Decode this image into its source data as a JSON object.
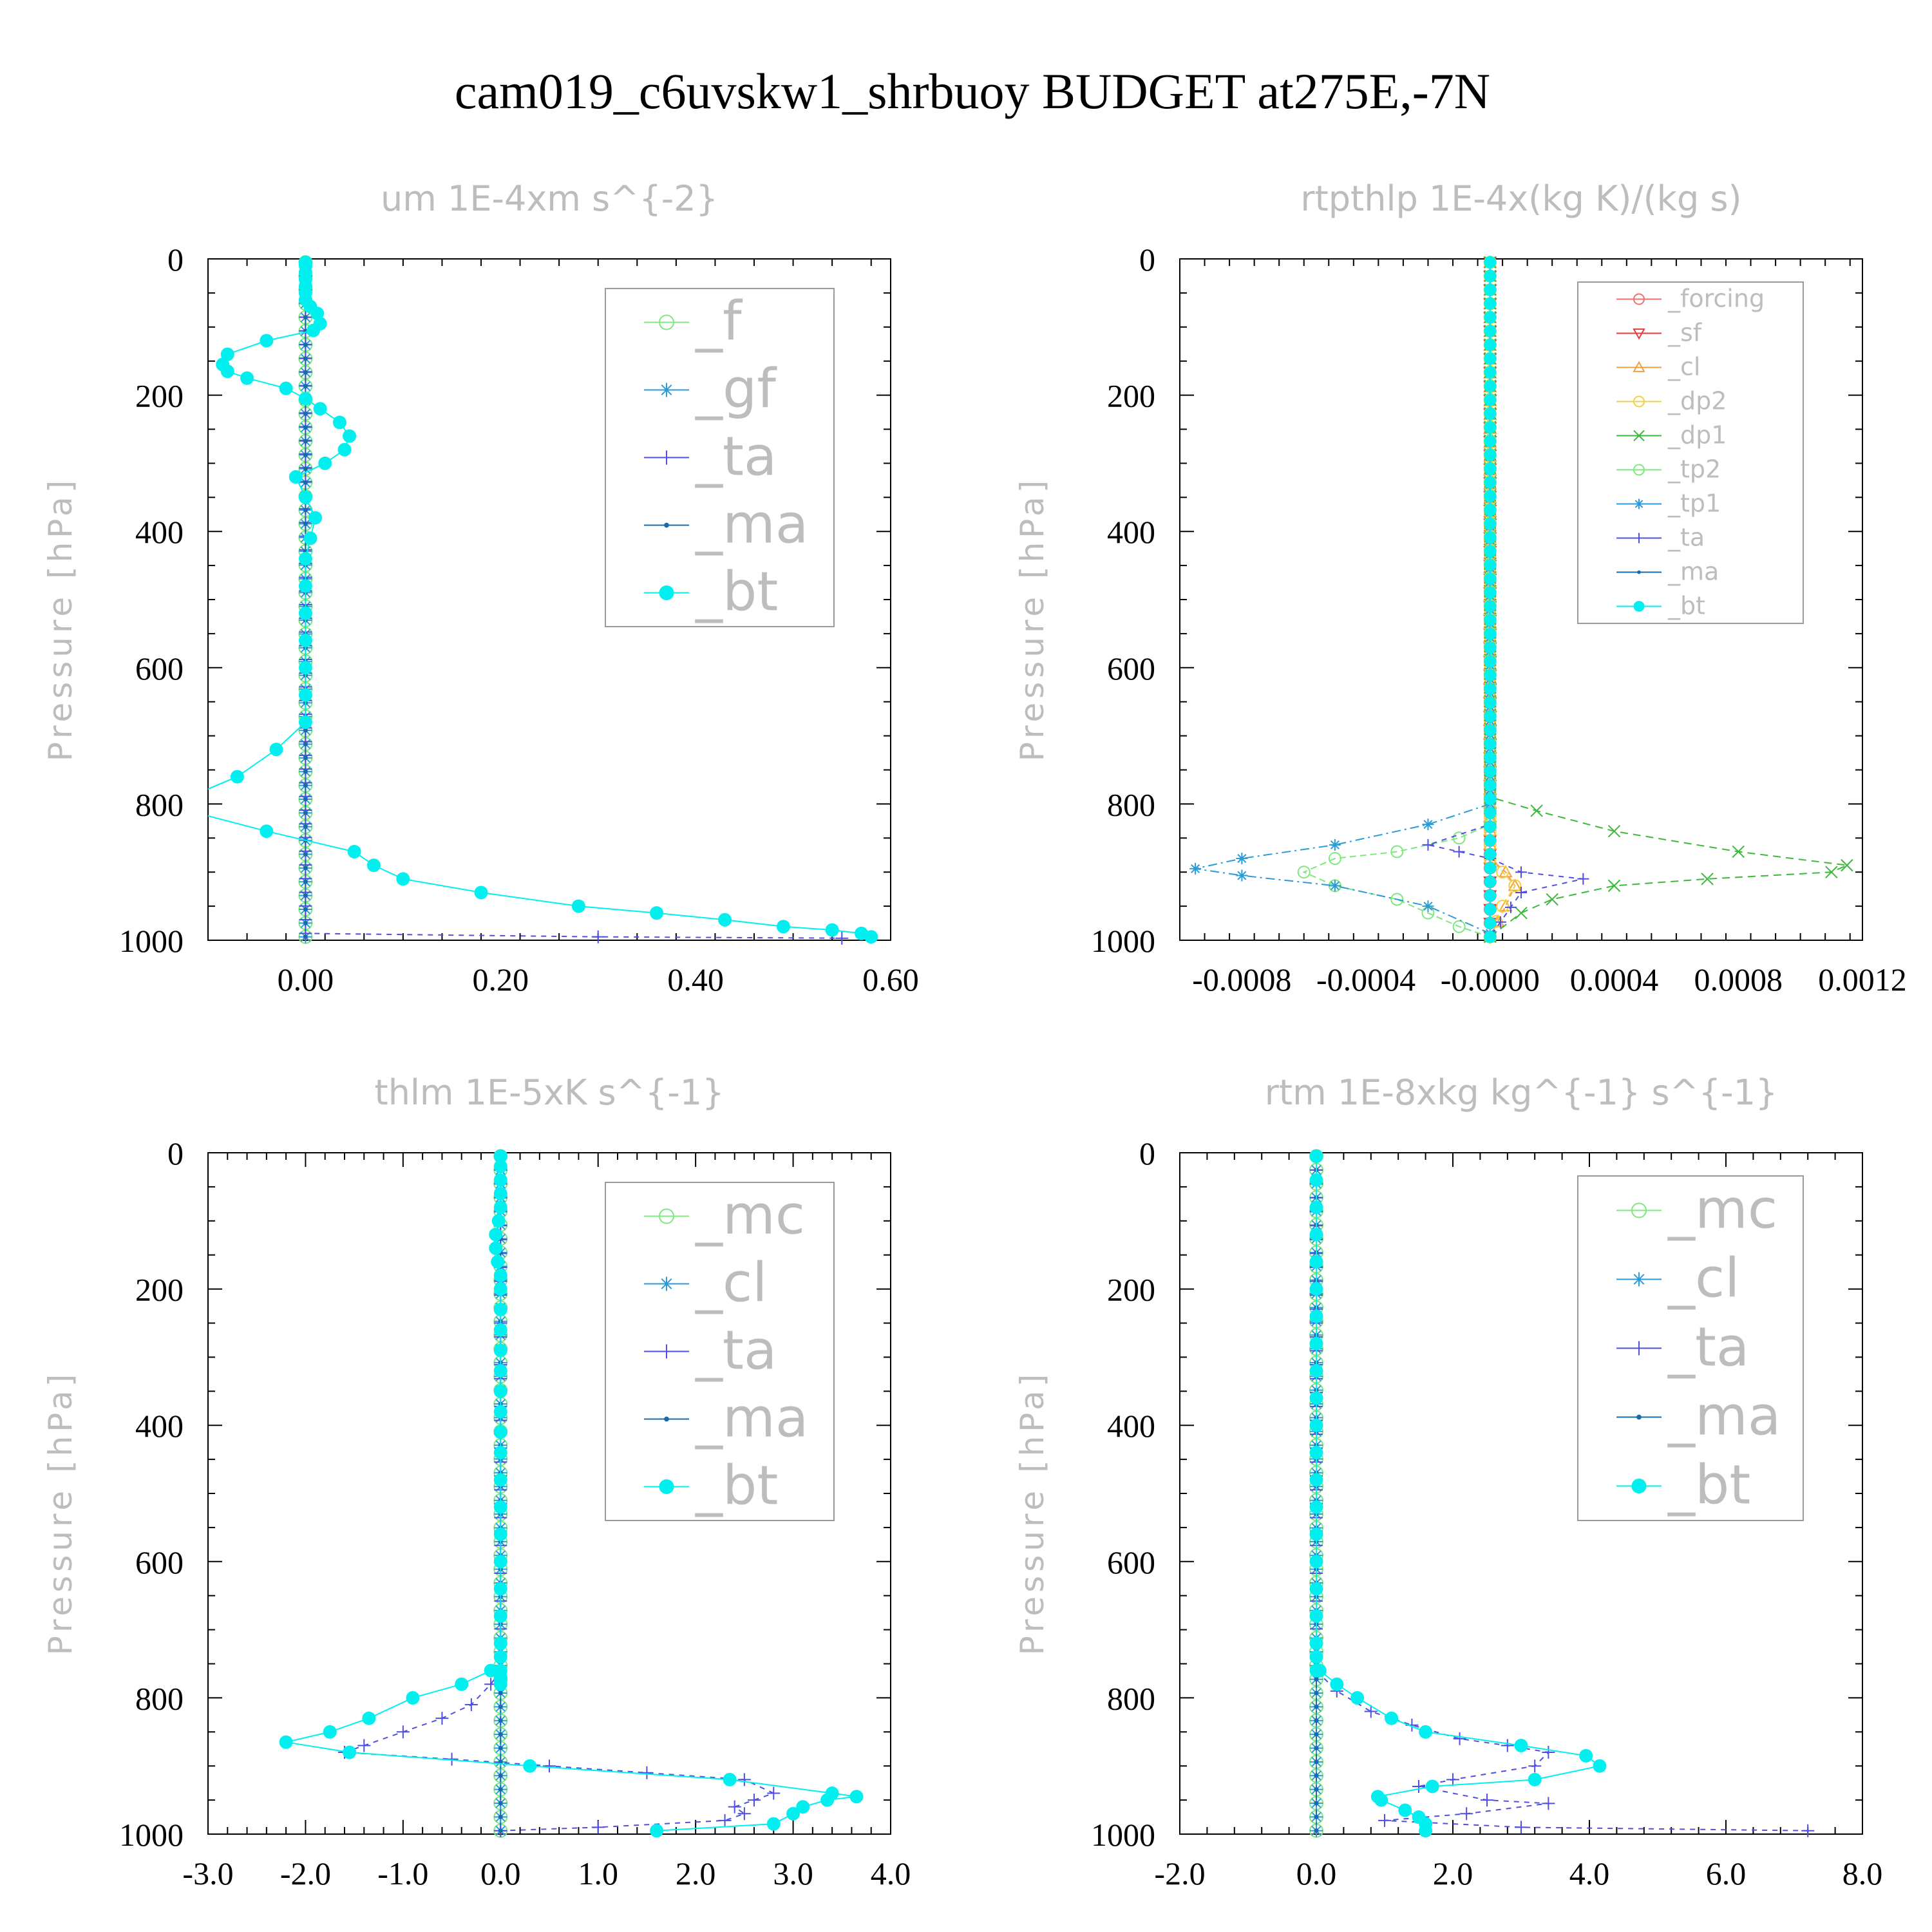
{
  "title": "cam019_c6uvskw1_shrbuoy  BUDGET at275E,-7N",
  "colors": {
    "f": "#7ee87e",
    "gf": "#2a9bd8",
    "ta": "#4f4fe0",
    "ma": "#1a6aa8",
    "bt": "#00f0f0",
    "forcing": "#f07070",
    "sf": "#e83a3a",
    "cl": "#f0a040",
    "dp2": "#f0d040",
    "dp1": "#3cb83c",
    "tp2": "#7ee87e",
    "tp1": "#2a9bd8",
    "mc": "#7ee87e",
    "cl_b": "#2a9bd8"
  },
  "chart_data": [
    {
      "type": "line",
      "title": "um  1E-4xm s^{-2}",
      "ylabel": "Pressure [hPa]",
      "xlim": [
        -0.1,
        0.6
      ],
      "ylim": [
        1000,
        0
      ],
      "xticks": [
        "0.00",
        "0.20",
        "0.40",
        "0.60"
      ],
      "yticks": [
        "0",
        "200",
        "400",
        "600",
        "800",
        "1000"
      ],
      "legend_position": "top-right",
      "series": [
        {
          "name": "_f",
          "key": "f",
          "marker": "circle-open",
          "x": [
            0.0,
            0.0
          ],
          "y": [
            5,
            995
          ]
        },
        {
          "name": "_gf",
          "key": "gf",
          "marker": "asterisk",
          "x": [
            0.0,
            0.0
          ],
          "y": [
            5,
            995
          ]
        },
        {
          "name": "_ta",
          "key": "ta",
          "marker": "plus",
          "x": [
            0.0,
            0.0,
            0.3,
            0.55
          ],
          "y": [
            5,
            990,
            995,
            997
          ]
        },
        {
          "name": "_ma",
          "key": "ma",
          "marker": "dot",
          "x": [
            0.0,
            0.0
          ],
          "y": [
            5,
            995
          ]
        },
        {
          "name": "_bt",
          "key": "bt",
          "marker": "circle-filled",
          "x": [
            0.0,
            0.0,
            0.0,
            0.0,
            0.0,
            0.0,
            0.0,
            0.005,
            0.012,
            0.015,
            0.008,
            -0.04,
            -0.08,
            -0.085,
            -0.08,
            -0.06,
            -0.02,
            0.0,
            0.015,
            0.035,
            0.045,
            0.04,
            0.02,
            -0.01,
            0.0,
            0.01,
            0.005,
            0.0,
            0.0,
            0.0,
            0.0,
            0.0,
            0.0,
            0.0,
            -0.03,
            -0.07,
            -0.12,
            -0.12,
            -0.04,
            0.05,
            0.07,
            0.1,
            0.18,
            0.28,
            0.36,
            0.43,
            0.49,
            0.54,
            0.57,
            0.58
          ],
          "y": [
            5,
            10,
            20,
            30,
            40,
            50,
            60,
            70,
            80,
            95,
            105,
            120,
            140,
            155,
            165,
            175,
            190,
            205,
            220,
            240,
            260,
            280,
            300,
            320,
            350,
            380,
            410,
            440,
            480,
            520,
            560,
            600,
            640,
            680,
            720,
            760,
            790,
            810,
            840,
            870,
            890,
            910,
            930,
            950,
            960,
            970,
            980,
            985,
            990,
            995
          ]
        }
      ]
    },
    {
      "type": "line",
      "title": "rtpthlp  1E-4x(kg K)/(kg s)",
      "ylabel": "Pressure [hPa]",
      "xlim": [
        -0.001,
        0.0012
      ],
      "ylim": [
        1000,
        0
      ],
      "xticks": [
        "-0.0008",
        "-0.0004",
        "-0.0000",
        "0.0004",
        "0.0008",
        "0.0012"
      ],
      "yticks": [
        "0",
        "200",
        "400",
        "600",
        "800",
        "1000"
      ],
      "legend_position": "top-right",
      "series": [
        {
          "name": "_forcing",
          "key": "forcing",
          "marker": "circle-open",
          "x": [
            0,
            0
          ],
          "y": [
            5,
            995
          ]
        },
        {
          "name": "_sf",
          "key": "sf",
          "marker": "triangle-down",
          "x": [
            0,
            0
          ],
          "y": [
            5,
            995
          ]
        },
        {
          "name": "_cl",
          "key": "cl",
          "marker": "triangle-up",
          "x": [
            0,
            0,
            5e-05,
            8e-05,
            5e-05,
            0.0
          ],
          "y": [
            5,
            880,
            900,
            920,
            950,
            995
          ]
        },
        {
          "name": "_dp2",
          "key": "dp2",
          "marker": "circle-open",
          "x": [
            0,
            0,
            4e-05,
            8e-05,
            4e-05,
            0.0
          ],
          "y": [
            5,
            880,
            900,
            920,
            950,
            995
          ]
        },
        {
          "name": "_dp1",
          "key": "dp1",
          "marker": "x",
          "x": [
            0,
            0,
            0.00015,
            0.0004,
            0.0008,
            0.00115,
            0.0011,
            0.0007,
            0.0004,
            0.0002,
            0.0001,
            0.0
          ],
          "y": [
            5,
            790,
            810,
            840,
            870,
            890,
            900,
            910,
            920,
            940,
            960,
            995
          ]
        },
        {
          "name": "_tp2",
          "key": "tp2",
          "marker": "circle-open",
          "x": [
            0,
            0,
            -0.0001,
            -0.0003,
            -0.0005,
            -0.0006,
            -0.0005,
            -0.0003,
            -0.0002,
            -0.0001,
            0.0
          ],
          "y": [
            5,
            830,
            850,
            870,
            880,
            900,
            920,
            940,
            960,
            980,
            995
          ]
        },
        {
          "name": "_tp1",
          "key": "tp1",
          "marker": "asterisk",
          "x": [
            0,
            0,
            -0.0002,
            -0.0005,
            -0.0008,
            -0.00095,
            -0.0008,
            -0.0005,
            -0.0002,
            0.0
          ],
          "y": [
            5,
            800,
            830,
            860,
            880,
            895,
            905,
            920,
            950,
            990
          ]
        },
        {
          "name": "_ta",
          "key": "ta",
          "marker": "plus",
          "x": [
            0,
            0,
            -0.0002,
            -0.0001,
            0.0,
            0.0001,
            0.0003,
            0.0001,
            0.0
          ],
          "y": [
            5,
            830,
            860,
            870,
            880,
            900,
            910,
            930,
            995
          ]
        },
        {
          "name": "_ma",
          "key": "ma",
          "marker": "dot",
          "x": [
            0,
            0
          ],
          "y": [
            5,
            995
          ]
        },
        {
          "name": "_bt",
          "key": "bt",
          "marker": "circle-filled",
          "x": [
            0,
            0
          ],
          "y": [
            5,
            995
          ]
        }
      ]
    },
    {
      "type": "line",
      "title": "thlm  1E-5xK s^{-1}",
      "ylabel": "Pressure [hPa]",
      "xlim": [
        -3.0,
        4.0
      ],
      "ylim": [
        1000,
        0
      ],
      "xticks": [
        "-3.0",
        "-2.0",
        "-1.0",
        "0.0",
        "1.0",
        "2.0",
        "3.0",
        "4.0"
      ],
      "yticks": [
        "0",
        "200",
        "400",
        "600",
        "800",
        "1000"
      ],
      "legend_position": "top-right",
      "series": [
        {
          "name": "_mc",
          "key": "mc",
          "marker": "circle-open",
          "x": [
            0.0,
            0.0
          ],
          "y": [
            5,
            995
          ]
        },
        {
          "name": "_cl",
          "key": "cl_b",
          "marker": "asterisk",
          "x": [
            0.0,
            0.0
          ],
          "y": [
            5,
            995
          ]
        },
        {
          "name": "_ta",
          "key": "ta",
          "marker": "plus",
          "x": [
            0.0,
            0.0,
            -0.1,
            -0.3,
            -0.6,
            -1.0,
            -1.4,
            -1.6,
            -0.5,
            0.5,
            1.5,
            2.5,
            2.8,
            2.6,
            2.4,
            2.5,
            2.3,
            1.0,
            0.0
          ],
          "y": [
            5,
            760,
            780,
            810,
            830,
            850,
            870,
            880,
            890,
            900,
            910,
            920,
            940,
            950,
            960,
            970,
            980,
            990,
            995
          ]
        },
        {
          "name": "_ma",
          "key": "ma",
          "marker": "dot",
          "x": [
            0.0,
            0.0
          ],
          "y": [
            5,
            995
          ]
        },
        {
          "name": "_bt",
          "key": "bt",
          "marker": "circle-filled",
          "x": [
            0.0,
            0.0,
            0.0,
            0.0,
            0.0,
            -0.02,
            -0.05,
            -0.05,
            -0.03,
            0.0,
            0.0,
            0.0,
            0.0,
            0.0,
            0.0,
            0.0,
            0.0,
            0.0,
            0.0,
            0.0,
            0.0,
            0.0,
            0.0,
            0.0,
            0.0,
            0.0,
            0.0,
            0.0,
            0.0,
            0.0,
            0.0,
            -0.1,
            -0.4,
            -0.9,
            -1.35,
            -1.75,
            -2.2,
            -1.55,
            0.3,
            2.35,
            3.4,
            3.65,
            3.35,
            3.1,
            3.0,
            2.8,
            1.6
          ],
          "y": [
            5,
            20,
            40,
            60,
            80,
            100,
            120,
            140,
            160,
            180,
            200,
            230,
            260,
            290,
            320,
            350,
            380,
            410,
            440,
            480,
            520,
            560,
            600,
            640,
            680,
            720,
            740,
            760,
            770,
            775,
            780,
            760,
            780,
            800,
            830,
            850,
            865,
            880,
            900,
            920,
            940,
            945,
            950,
            960,
            970,
            985,
            995
          ]
        }
      ]
    },
    {
      "type": "line",
      "title": "rtm  1E-8xkg kg^{-1} s^{-1}",
      "ylabel": "Pressure [hPa]",
      "xlim": [
        -2.0,
        8.0
      ],
      "ylim": [
        1000,
        0
      ],
      "xticks": [
        "-2.0",
        "0.0",
        "2.0",
        "4.0",
        "6.0",
        "8.0"
      ],
      "yticks": [
        "0",
        "200",
        "400",
        "600",
        "800",
        "1000"
      ],
      "legend_position": "top-right",
      "series": [
        {
          "name": "_mc",
          "key": "mc",
          "marker": "circle-open",
          "x": [
            0.0,
            0.0
          ],
          "y": [
            5,
            995
          ]
        },
        {
          "name": "_cl",
          "key": "cl_b",
          "marker": "asterisk",
          "x": [
            0.0,
            0.0
          ],
          "y": [
            5,
            995
          ]
        },
        {
          "name": "_ta",
          "key": "ta",
          "marker": "plus",
          "x": [
            0.0,
            0.0,
            0.3,
            0.8,
            1.4,
            2.1,
            2.8,
            3.4,
            3.2,
            2.0,
            1.5,
            2.5,
            3.4,
            2.2,
            1.0,
            3.0,
            7.2
          ],
          "y": [
            5,
            760,
            790,
            820,
            840,
            860,
            870,
            880,
            900,
            920,
            930,
            950,
            955,
            970,
            980,
            990,
            995
          ]
        },
        {
          "name": "_ma",
          "key": "ma",
          "marker": "dot",
          "x": [
            0.0,
            0.0
          ],
          "y": [
            5,
            995
          ]
        },
        {
          "name": "_bt",
          "key": "bt",
          "marker": "circle-filled",
          "x": [
            0.0,
            0.0,
            0.0,
            0.0,
            0.0,
            0.0,
            0.0,
            0.0,
            0.0,
            0.0,
            0.0,
            0.0,
            0.0,
            0.0,
            0.0,
            0.0,
            0.0,
            0.0,
            0.0,
            0.0,
            0.0,
            0.05,
            0.3,
            0.6,
            1.1,
            1.6,
            3.0,
            3.95,
            4.15,
            3.2,
            1.7,
            0.9,
            0.95,
            1.3,
            1.5,
            1.6,
            1.6
          ],
          "y": [
            5,
            40,
            80,
            120,
            160,
            200,
            240,
            280,
            320,
            360,
            400,
            440,
            480,
            520,
            560,
            600,
            640,
            680,
            720,
            740,
            760,
            760,
            780,
            800,
            830,
            850,
            870,
            885,
            900,
            920,
            930,
            945,
            950,
            965,
            975,
            985,
            995
          ]
        }
      ]
    }
  ]
}
